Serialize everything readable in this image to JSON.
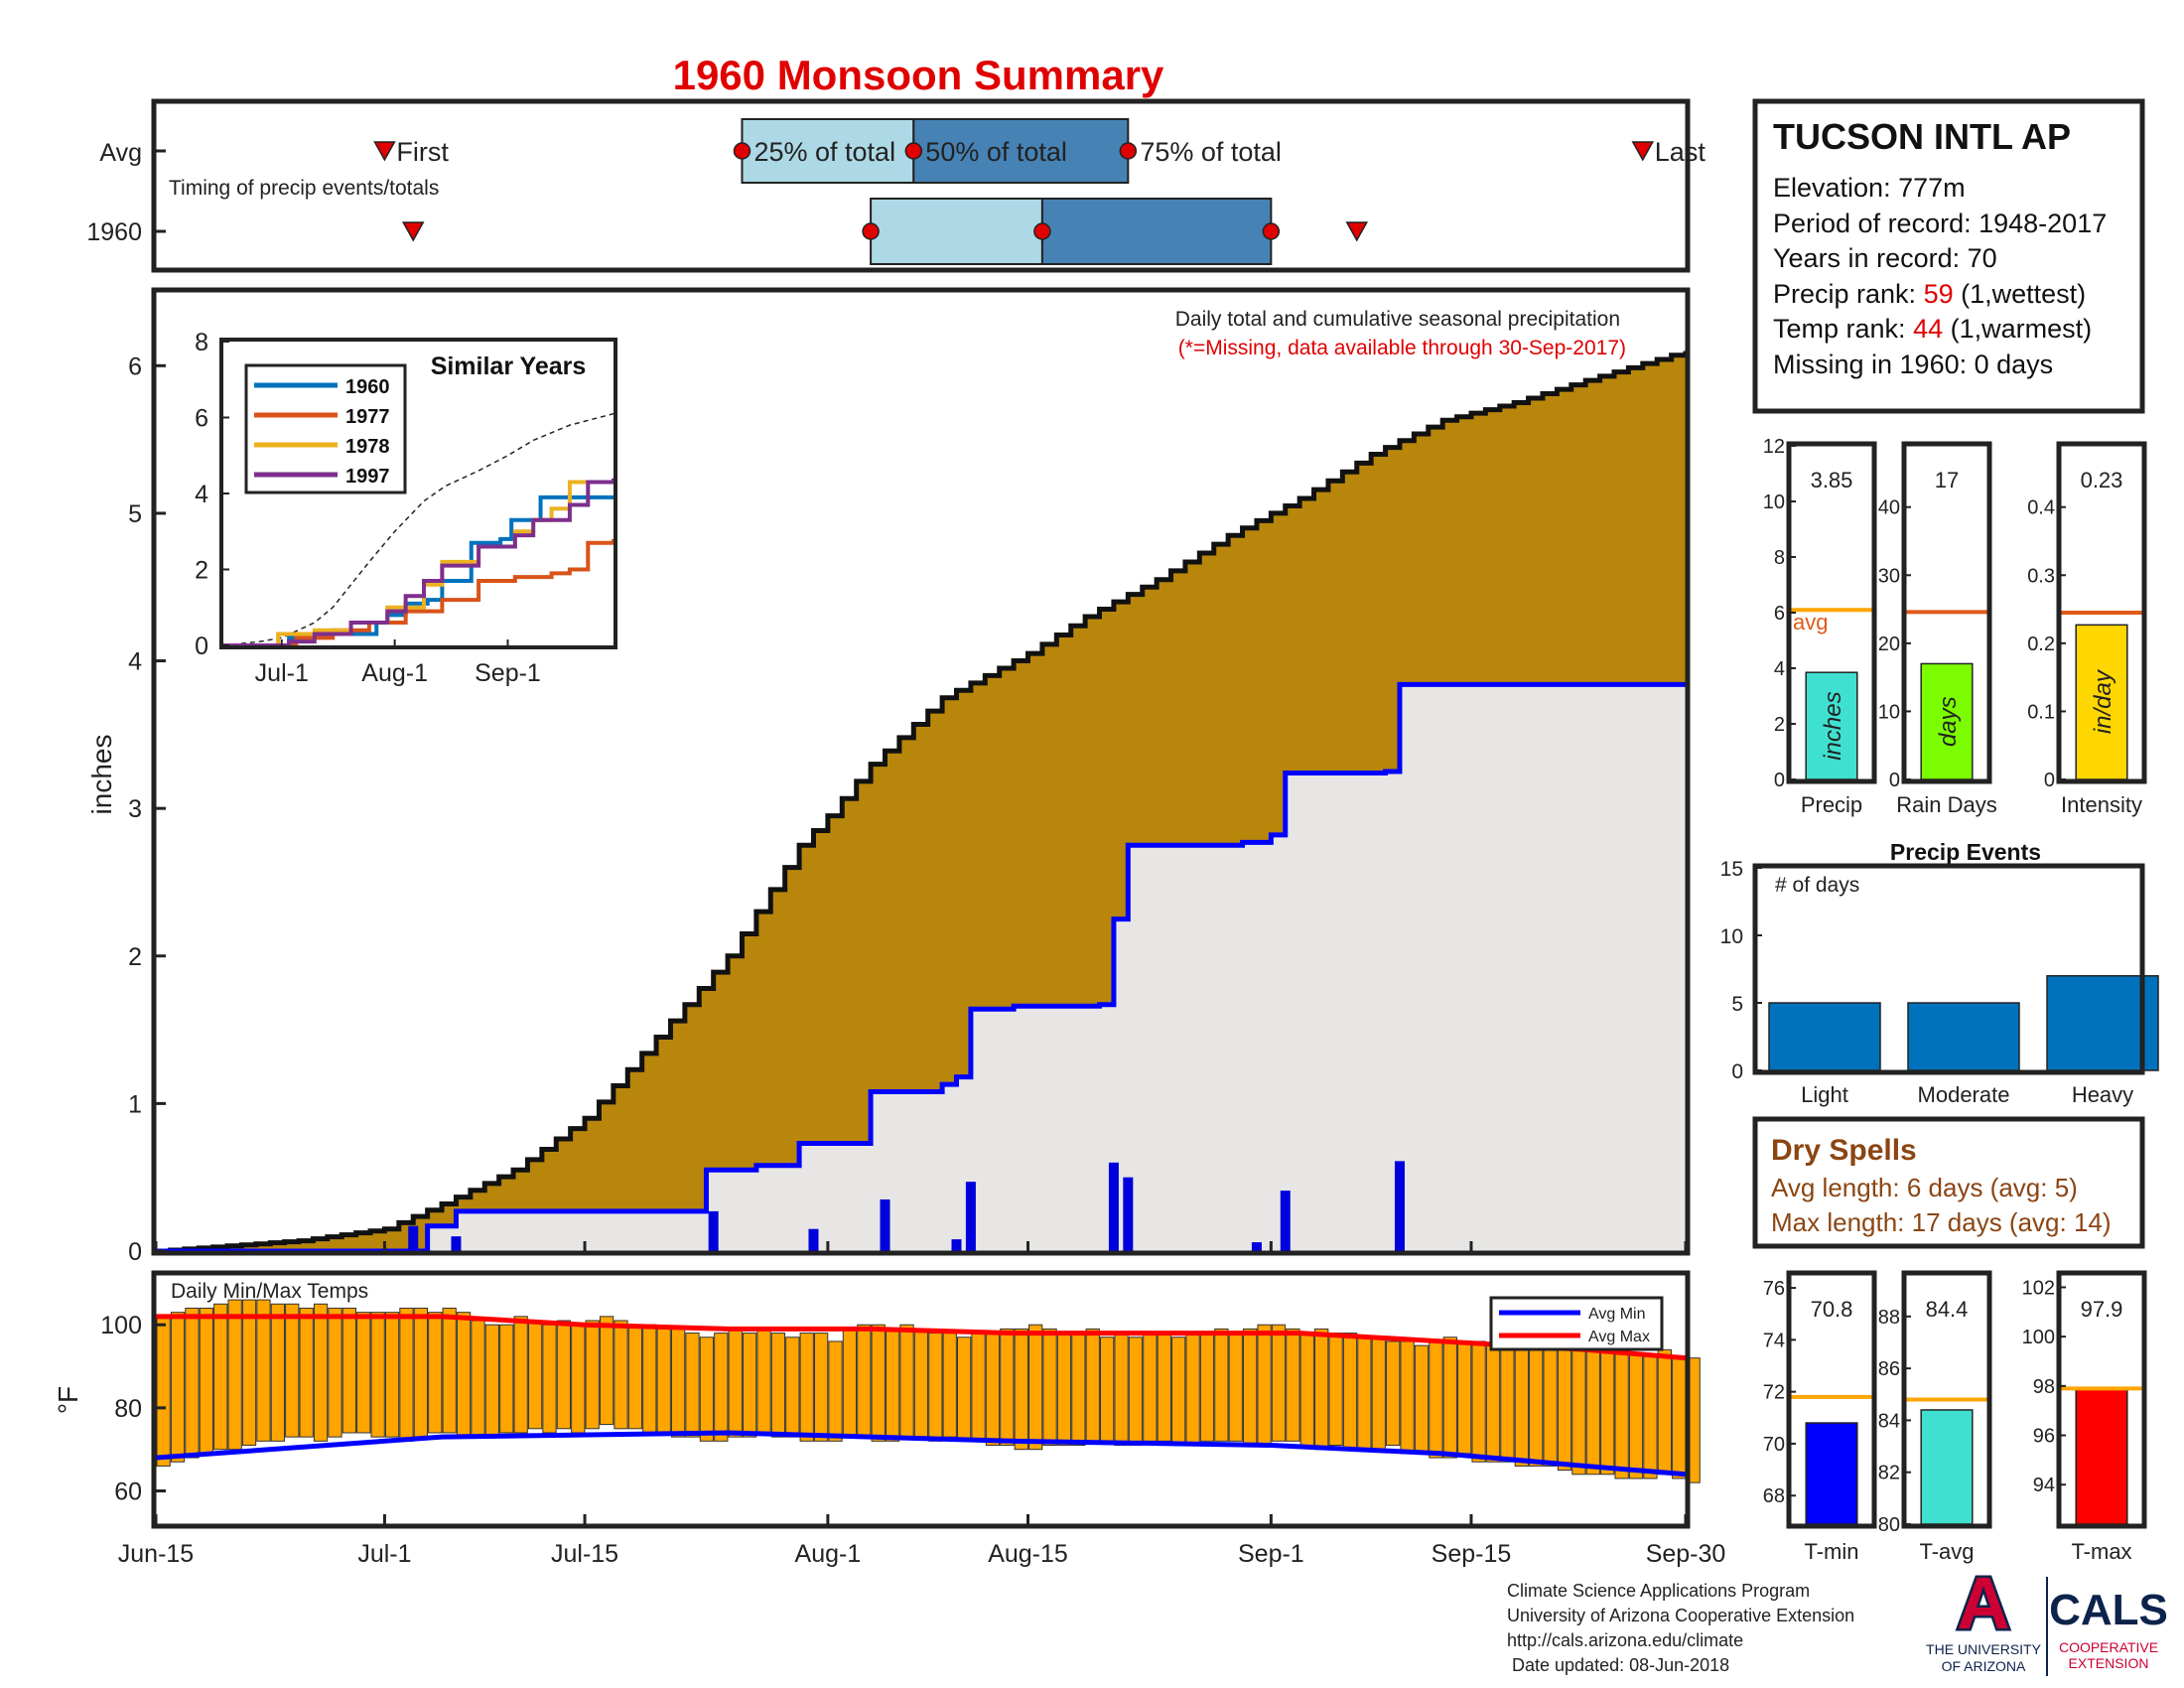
{
  "title": "1960 Monsoon Summary",
  "colors": {
    "title": "#e00000",
    "cumulative_avg_fill": "#b8860b",
    "cumulative_1960_fill": "#e8e6e4",
    "year_line": "#0000ff",
    "daily_bar": "#0000dd",
    "temp_bar": "#ffa500",
    "avg_line": "#e05a1b",
    "tmin_bar": "#0000ff",
    "tavg_bar": "#40e0d0",
    "tmax_bar": "#ff0000",
    "precip_bar": "#40e0d0",
    "raindays_bar": "#7cfc00",
    "intensity_bar": "#ffd700",
    "event_bar": "#0072bd",
    "timing_light": "#add8e6",
    "timing_dark": "#4682b4",
    "dry_spells": "#8b4513",
    "similar_1960": "#0072bd",
    "similar_1977": "#d95319",
    "similar_1978": "#edb120",
    "similar_1997": "#7e2f8e"
  },
  "timing": {
    "row_labels": [
      "Avg",
      "1960"
    ],
    "note": "Timing of precip events/totals",
    "avg_labels": {
      "first": "First",
      "p25": "25% of total",
      "p50": "50% of total",
      "p75": "75% of total",
      "last": "Last"
    },
    "avg": {
      "first": "Jul-1",
      "p25": "Jul-26",
      "p50": "Aug-7",
      "p75": "Aug-22",
      "last": "Sep-27"
    },
    "y1960": {
      "first": "Jul-3",
      "p25": "Aug-4",
      "p50": "Aug-16",
      "p75": "Sep-1",
      "last": "Sep-7"
    }
  },
  "station": {
    "name": "TUCSON INTL AP",
    "elevation_label": "Elevation: 777m",
    "period_label": "Period of record: 1948-2017",
    "years_label": "Years in record: 70",
    "precip_rank_prefix": "Precip rank: ",
    "precip_rank": "59",
    "precip_rank_suffix": " (1,wettest)",
    "temp_rank_prefix": "Temp rank: ",
    "temp_rank": "44",
    "temp_rank_suffix": " (1,warmest)",
    "missing_label": "Missing in 1960: 0 days"
  },
  "chart_data": [
    {
      "name": "main_precip",
      "type": "area",
      "title": "Daily total and cumulative seasonal precipitation",
      "subtitle": "(*=Missing, data available through 30-Sep-2017)",
      "ylabel": "inches",
      "ylim": [
        0,
        6.5
      ],
      "yticks": [
        0,
        1,
        2,
        3,
        4,
        5,
        6
      ],
      "x_ticks": [
        "Jun-15",
        "Jul-1",
        "Jul-15",
        "Aug-1",
        "Aug-15",
        "Sep-1",
        "Sep-15",
        "Sep-30"
      ],
      "x_tick_days": [
        0,
        16,
        30,
        47,
        61,
        78,
        92,
        107
      ],
      "avg_cumulative": {
        "days": [
          0,
          10,
          16,
          20,
          25,
          30,
          35,
          40,
          45,
          47,
          50,
          55,
          61,
          65,
          70,
          75,
          78,
          80,
          85,
          90,
          95,
          100,
          107
        ],
        "values": [
          0,
          0.07,
          0.15,
          0.32,
          0.55,
          0.9,
          1.45,
          2.0,
          2.75,
          2.95,
          3.3,
          3.75,
          4.05,
          4.3,
          4.55,
          4.85,
          5.0,
          5.1,
          5.4,
          5.63,
          5.75,
          5.9,
          6.1
        ]
      },
      "cumulative_1960": {
        "days": [
          0,
          18,
          19,
          21,
          38,
          38.5,
          42,
          45,
          50,
          55,
          56,
          57,
          60,
          66,
          67,
          68,
          76,
          78,
          79,
          86,
          87,
          107
        ],
        "values": [
          0,
          0,
          0.17,
          0.27,
          0.27,
          0.55,
          0.58,
          0.73,
          1.08,
          1.13,
          1.18,
          1.64,
          1.66,
          1.67,
          2.25,
          2.75,
          2.77,
          2.82,
          3.24,
          3.25,
          3.84,
          3.84
        ]
      },
      "daily_1960": {
        "days": [
          18,
          21,
          39,
          46,
          51,
          56,
          57,
          67,
          68,
          77,
          79,
          87
        ],
        "values": [
          0.17,
          0.1,
          0.27,
          0.15,
          0.35,
          0.08,
          0.47,
          0.6,
          0.5,
          0.06,
          0.41,
          0.61
        ]
      }
    },
    {
      "name": "similar_years",
      "type": "line",
      "title": "Similar Years",
      "ylim": [
        0,
        8
      ],
      "yticks": [
        0,
        2,
        4,
        6,
        8
      ],
      "x_ticks": [
        "Jul-1",
        "Aug-1",
        "Sep-1"
      ],
      "x_tick_days": [
        16,
        47,
        78
      ],
      "avg_dashed": {
        "days": [
          0,
          10,
          16,
          25,
          30,
          40,
          47,
          55,
          61,
          70,
          78,
          85,
          95,
          107
        ],
        "values": [
          0,
          0.1,
          0.2,
          0.6,
          1.0,
          2.2,
          3.0,
          3.8,
          4.2,
          4.6,
          5.0,
          5.4,
          5.8,
          6.1
        ]
      },
      "series": [
        {
          "name": "1960",
          "days": [
            0,
            18,
            21,
            38,
            42,
            45,
            50,
            56,
            60,
            66,
            68,
            76,
            79,
            87,
            107
          ],
          "values": [
            0,
            0.2,
            0.3,
            0.3,
            0.6,
            0.8,
            1.1,
            1.2,
            1.7,
            1.7,
            2.7,
            2.8,
            3.3,
            3.9,
            3.9
          ]
        },
        {
          "name": "1977",
          "days": [
            0,
            20,
            30,
            40,
            50,
            60,
            70,
            80,
            90,
            95,
            100,
            107
          ],
          "values": [
            0,
            0.2,
            0.4,
            0.6,
            0.9,
            1.2,
            1.7,
            1.8,
            1.9,
            2.0,
            2.7,
            2.8
          ]
        },
        {
          "name": "1978",
          "days": [
            0,
            15,
            25,
            35,
            45,
            55,
            60,
            70,
            80,
            85,
            90,
            95,
            107
          ],
          "values": [
            0,
            0.3,
            0.4,
            0.6,
            1.0,
            1.6,
            2.2,
            2.6,
            3.0,
            3.3,
            3.6,
            4.3,
            4.3
          ]
        },
        {
          "name": "1997",
          "days": [
            0,
            18,
            25,
            35,
            45,
            50,
            55,
            60,
            70,
            80,
            85,
            95,
            100,
            107
          ],
          "values": [
            0,
            0.1,
            0.3,
            0.6,
            0.9,
            1.3,
            1.7,
            2.1,
            2.6,
            2.9,
            3.3,
            3.7,
            4.3,
            4.4
          ]
        }
      ]
    },
    {
      "name": "temps",
      "type": "bar",
      "title": "Daily Min/Max Temps",
      "ylabel": "°F",
      "ylim": [
        52,
        112
      ],
      "yticks": [
        60,
        80,
        100
      ],
      "legend": [
        "Avg Min",
        "Avg Max"
      ],
      "legend_position": "top-right",
      "avg_min": {
        "days": [
          0,
          20,
          40,
          60,
          78,
          90,
          100,
          107
        ],
        "values": [
          68,
          73,
          74,
          72,
          71,
          69,
          66,
          64
        ]
      },
      "avg_max": {
        "days": [
          0,
          20,
          30,
          40,
          50,
          60,
          70,
          80,
          90,
          100,
          107
        ],
        "values": [
          102,
          102,
          100,
          99,
          99,
          98,
          98,
          98,
          96,
          94,
          92
        ]
      },
      "daily_min": [
        66,
        67,
        68,
        69,
        70,
        70,
        71,
        72,
        72,
        73,
        73,
        72,
        73,
        74,
        74,
        73,
        73,
        72,
        73,
        74,
        74,
        73,
        73,
        73,
        74,
        74,
        75,
        74,
        75,
        74,
        75,
        76,
        75,
        75,
        74,
        74,
        73,
        73,
        72,
        72,
        73,
        73,
        74,
        73,
        73,
        72,
        72,
        72,
        73,
        73,
        72,
        72,
        73,
        73,
        72,
        73,
        72,
        72,
        71,
        71,
        70,
        70,
        71,
        71,
        71,
        72,
        72,
        71,
        71,
        72,
        72,
        71,
        71,
        72,
        72,
        72,
        71,
        71,
        72,
        72,
        71,
        70,
        71,
        70,
        70,
        70,
        71,
        69,
        69,
        68,
        68,
        69,
        67,
        67,
        67,
        66,
        66,
        66,
        65,
        64,
        64,
        64,
        63,
        63,
        63,
        64,
        63,
        62
      ],
      "daily_max": [
        102,
        103,
        104,
        104,
        105,
        106,
        106,
        106,
        105,
        105,
        104,
        105,
        104,
        104,
        103,
        103,
        103,
        104,
        104,
        103,
        104,
        103,
        101,
        100,
        100,
        102,
        101,
        100,
        101,
        100,
        101,
        102,
        101,
        100,
        100,
        99,
        99,
        98,
        97,
        98,
        99,
        98,
        99,
        98,
        97,
        98,
        98,
        96,
        99,
        100,
        100,
        99,
        100,
        99,
        98,
        98,
        97,
        98,
        98,
        99,
        99,
        100,
        99,
        98,
        98,
        99,
        97,
        98,
        97,
        98,
        98,
        97,
        98,
        98,
        99,
        98,
        99,
        100,
        100,
        99,
        98,
        99,
        98,
        98,
        97,
        97,
        96,
        96,
        95,
        96,
        97,
        96,
        96,
        95,
        95,
        94,
        95,
        95,
        95,
        94,
        94,
        95,
        94,
        93,
        93,
        94,
        92,
        92
      ]
    },
    {
      "name": "precip_summary",
      "type": "bar",
      "panels": [
        {
          "label": "Precip",
          "unit": "inches",
          "value": 3.85,
          "value_label": "3.85",
          "avg": 6.1,
          "ylim": [
            0,
            12
          ],
          "yticks": [
            0,
            2,
            4,
            6,
            8,
            10,
            12
          ],
          "avg_label": "avg"
        },
        {
          "label": "Rain Days",
          "unit": "days",
          "value": 17,
          "value_label": "17",
          "avg": 24.6,
          "ylim": [
            0,
            49
          ],
          "yticks": [
            0,
            10,
            20,
            30,
            40
          ]
        },
        {
          "label": "Intensity",
          "unit": "in/day",
          "value": 0.227,
          "value_label": "0.23",
          "avg": 0.245,
          "ylim": [
            0,
            0.49
          ],
          "yticks": [
            0,
            0.1,
            0.2,
            0.3,
            0.4
          ],
          "ytick_labels": [
            "0",
            "0.1",
            "0.2",
            "0.3",
            "0.4"
          ]
        }
      ]
    },
    {
      "name": "precip_events",
      "type": "bar",
      "title": "Precip Events",
      "ylabel": "# of days",
      "ylim": [
        0,
        15
      ],
      "yticks": [
        0,
        5,
        10,
        15
      ],
      "categories": [
        "Light",
        "Moderate",
        "Heavy"
      ],
      "values": [
        5,
        5,
        7
      ]
    },
    {
      "name": "temp_summary",
      "type": "bar",
      "panels": [
        {
          "label": "T-min",
          "value": 70.8,
          "value_label": "70.8",
          "avg": 71.8,
          "ylim": [
            66.9,
            76.5
          ],
          "yticks": [
            68,
            70,
            72,
            74,
            76
          ]
        },
        {
          "label": "T-avg",
          "value": 84.4,
          "value_label": "84.4",
          "avg": 84.8,
          "ylim": [
            80,
            89.6
          ],
          "yticks": [
            80,
            82,
            84,
            86,
            88
          ]
        },
        {
          "label": "T-max",
          "value": 97.9,
          "value_label": "97.9",
          "avg": 97.9,
          "ylim": [
            92.4,
            102.5
          ],
          "yticks": [
            94,
            96,
            98,
            100,
            102
          ]
        }
      ]
    }
  ],
  "dry_spells": {
    "title": "Dry Spells",
    "avg_length": "Avg length: 6 days (avg: 5)",
    "max_length": "Max length: 17 days (avg: 14)"
  },
  "footer": {
    "line1": "Climate Science Applications Program",
    "line2": "University of Arizona Cooperative Extension",
    "line3": "http://cals.arizona.edu/climate",
    "line4": " Date updated: 08-Jun-2018",
    "logo_ua_text1": "THE UNIVERSITY",
    "logo_ua_text2": "OF ARIZONA",
    "logo_cals": "CALS",
    "logo_coop1": "COOPERATIVE",
    "logo_coop2": "EXTENSION"
  }
}
